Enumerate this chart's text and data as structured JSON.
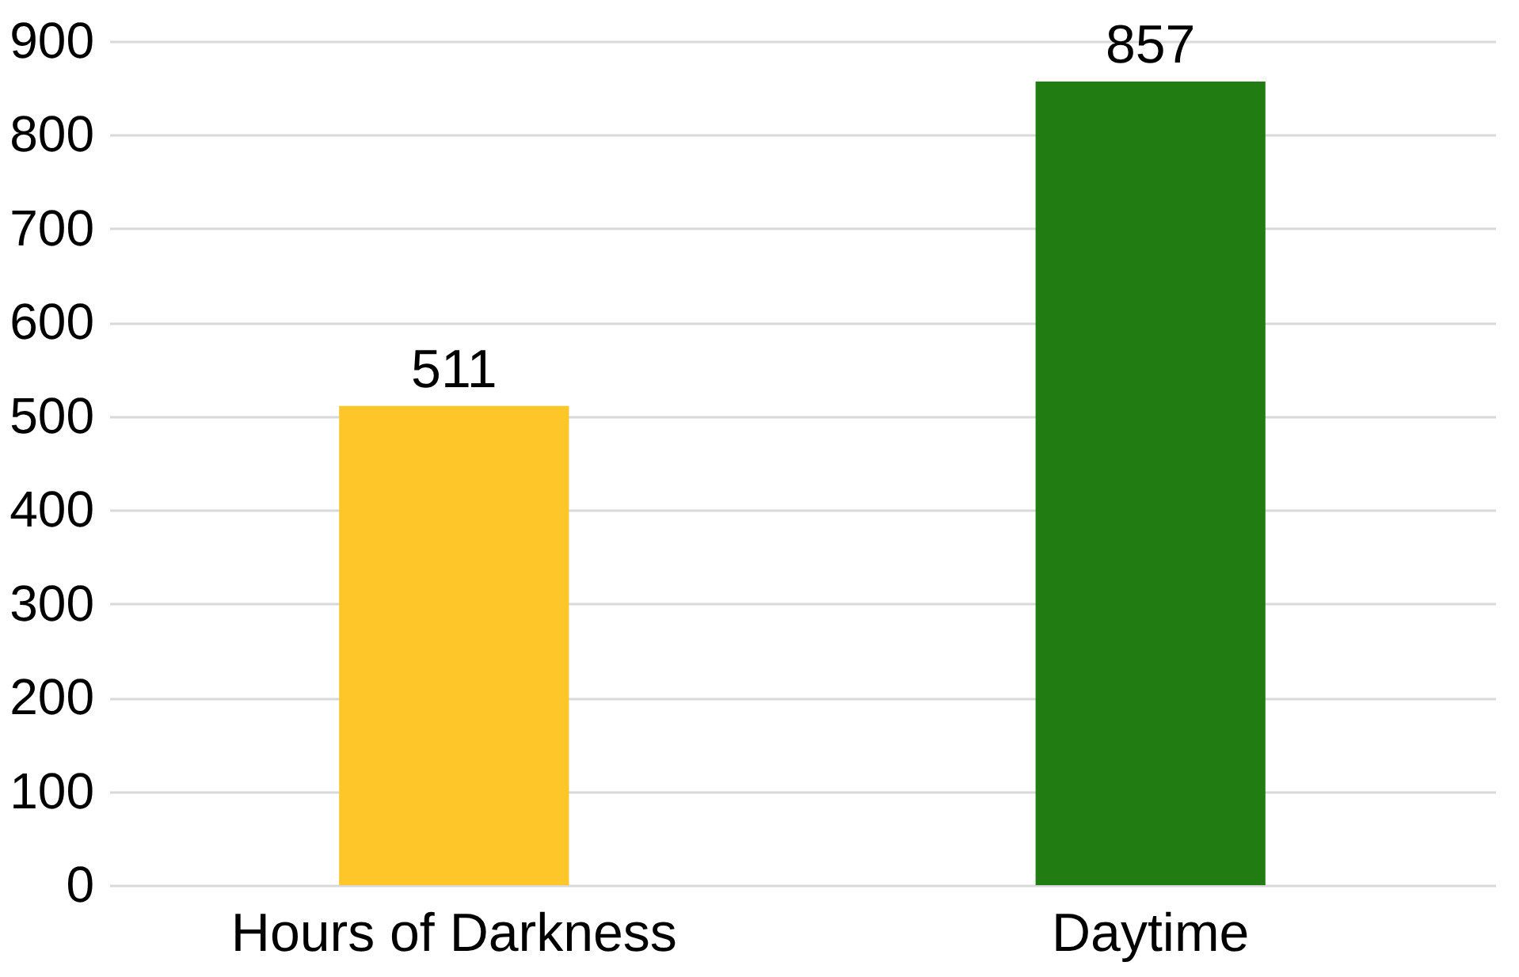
{
  "chart_data": {
    "type": "bar",
    "categories": [
      "Hours of Darkness",
      "Daytime"
    ],
    "values": [
      511,
      857
    ],
    "colors": [
      "#ffc62a",
      "#217d12"
    ],
    "ylim": [
      0,
      900
    ],
    "yticks": [
      0,
      100,
      200,
      300,
      400,
      500,
      600,
      700,
      800,
      900
    ],
    "grid": "y",
    "data_labels": true
  }
}
